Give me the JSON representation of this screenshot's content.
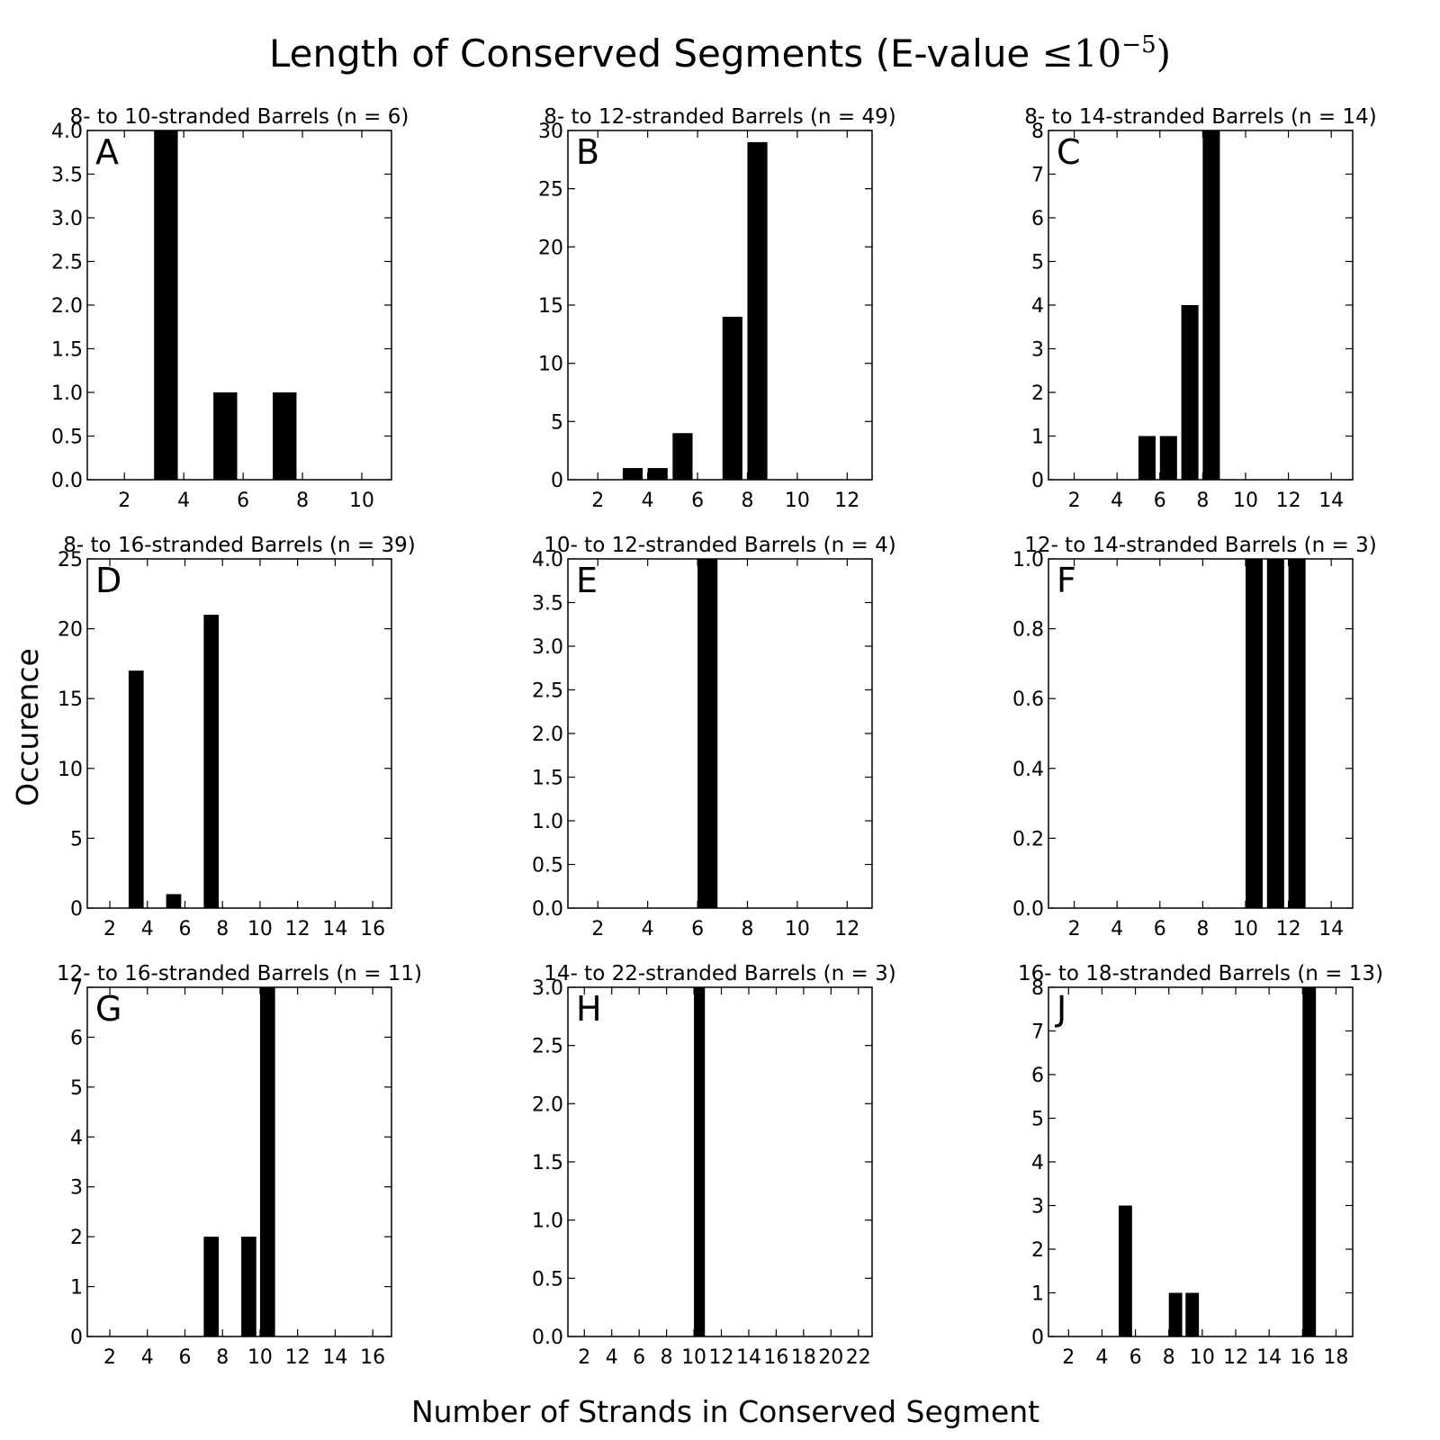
{
  "figure": {
    "title_main": "Length of Conserved Segments (E-value ",
    "title_math": "≤10",
    "title_exp": "−5",
    "title_close": ")",
    "xlabel": "Number of Strands in Conserved Segment",
    "ylabel": "Occurence"
  },
  "chart_data": [
    {
      "type": "bar",
      "label": "A",
      "title": "8- to 10-stranded Barrels (n = 6)",
      "xlim": [
        0.75,
        11
      ],
      "ylim": [
        0,
        4
      ],
      "xticks": [
        2,
        4,
        6,
        8,
        10
      ],
      "yticks": [
        "0.0",
        "0.5",
        "1.0",
        "1.5",
        "2.0",
        "2.5",
        "3.0",
        "3.5",
        "4.0"
      ],
      "x": [
        3,
        5,
        7
      ],
      "values": [
        4,
        1,
        1
      ]
    },
    {
      "type": "bar",
      "label": "B",
      "title": "8- to 12-stranded Barrels (n = 49)",
      "xlim": [
        0.8,
        13
      ],
      "ylim": [
        0,
        30
      ],
      "xticks": [
        2,
        4,
        6,
        8,
        10,
        12
      ],
      "yticks": [
        "0",
        "5",
        "10",
        "15",
        "20",
        "25",
        "30"
      ],
      "x": [
        3,
        4,
        5,
        7,
        8
      ],
      "values": [
        1,
        1,
        4,
        14,
        29
      ]
    },
    {
      "type": "bar",
      "label": "C",
      "title": "8- to 14-stranded Barrels (n = 14)",
      "xlim": [
        0.8,
        15
      ],
      "ylim": [
        0,
        8
      ],
      "xticks": [
        2,
        4,
        6,
        8,
        10,
        12,
        14
      ],
      "yticks": [
        "0",
        "1",
        "2",
        "3",
        "4",
        "5",
        "6",
        "7",
        "8"
      ],
      "x": [
        5,
        6,
        7,
        8
      ],
      "values": [
        1,
        1,
        4,
        8
      ]
    },
    {
      "type": "bar",
      "label": "D",
      "title": "8- to 16-stranded Barrels (n = 39)",
      "xlim": [
        0.8,
        17
      ],
      "ylim": [
        0,
        25
      ],
      "xticks": [
        2,
        4,
        6,
        8,
        10,
        12,
        14,
        16
      ],
      "yticks": [
        "0",
        "5",
        "10",
        "15",
        "20",
        "25"
      ],
      "x": [
        3,
        5,
        7
      ],
      "values": [
        17,
        1,
        21
      ]
    },
    {
      "type": "bar",
      "label": "E",
      "title": "10- to 12-stranded Barrels (n = 4)",
      "xlim": [
        0.8,
        13
      ],
      "ylim": [
        0,
        4
      ],
      "xticks": [
        2,
        4,
        6,
        8,
        10,
        12
      ],
      "yticks": [
        "0.0",
        "0.5",
        "1.0",
        "1.5",
        "2.0",
        "2.5",
        "3.0",
        "3.5",
        "4.0"
      ],
      "x": [
        6
      ],
      "values": [
        4
      ]
    },
    {
      "type": "bar",
      "label": "F",
      "title": "12- to 14-stranded Barrels (n = 3)",
      "xlim": [
        0.8,
        15
      ],
      "ylim": [
        0,
        1
      ],
      "xticks": [
        2,
        4,
        6,
        8,
        10,
        12,
        14
      ],
      "yticks": [
        "0.0",
        "0.2",
        "0.4",
        "0.6",
        "0.8",
        "1.0"
      ],
      "x": [
        10,
        11,
        12
      ],
      "values": [
        1,
        1,
        1
      ]
    },
    {
      "type": "bar",
      "label": "G",
      "title": "12- to 16-stranded Barrels (n = 11)",
      "xlim": [
        0.8,
        17
      ],
      "ylim": [
        0,
        7
      ],
      "xticks": [
        2,
        4,
        6,
        8,
        10,
        12,
        14,
        16
      ],
      "yticks": [
        "0",
        "1",
        "2",
        "3",
        "4",
        "5",
        "6",
        "7"
      ],
      "x": [
        7,
        9,
        10
      ],
      "values": [
        2,
        2,
        7
      ]
    },
    {
      "type": "bar",
      "label": "H",
      "title": "14- to 22-stranded Barrels (n = 3)",
      "xlim": [
        0.8,
        23
      ],
      "ylim": [
        0,
        3
      ],
      "xticks": [
        2,
        4,
        6,
        8,
        10,
        12,
        14,
        16,
        18,
        20,
        22
      ],
      "yticks": [
        "0.0",
        "0.5",
        "1.0",
        "1.5",
        "2.0",
        "2.5",
        "3.0"
      ],
      "x": [
        10
      ],
      "values": [
        3
      ]
    },
    {
      "type": "bar",
      "label": "J",
      "title": "16- to 18-stranded Barrels (n = 13)",
      "xlim": [
        0.8,
        19
      ],
      "ylim": [
        0,
        8
      ],
      "xticks": [
        2,
        4,
        6,
        8,
        10,
        12,
        14,
        16,
        18
      ],
      "yticks": [
        "0",
        "1",
        "2",
        "3",
        "4",
        "5",
        "6",
        "7",
        "8"
      ],
      "x": [
        5,
        8,
        9,
        16
      ],
      "values": [
        3,
        1,
        1,
        8
      ]
    }
  ]
}
